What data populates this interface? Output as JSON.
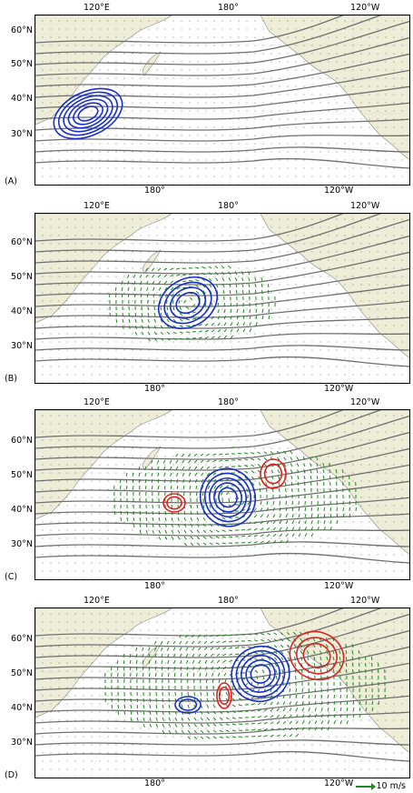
{
  "panels": [
    {
      "letter": "(A)",
      "top_ticks": [
        "120°E",
        "180°",
        "120°W"
      ],
      "bottom_ticks": [
        "180°",
        "120°W"
      ],
      "lat_ticks": [
        "60°N",
        "50°N",
        "40°N",
        "30°N"
      ]
    },
    {
      "letter": "(B)",
      "top_ticks": [
        "120°E",
        "180°",
        "120°W"
      ],
      "bottom_ticks": [
        "180°",
        "120°W"
      ],
      "lat_ticks": [
        "60°N",
        "50°N",
        "40°N",
        "30°N"
      ]
    },
    {
      "letter": "(C)",
      "top_ticks": [
        "120°E",
        "180°",
        "120°W"
      ],
      "bottom_ticks": [
        "180°",
        "120°W"
      ],
      "lat_ticks": [
        "60°N",
        "50°N",
        "40°N",
        "30°N"
      ]
    },
    {
      "letter": "(D)",
      "top_ticks": [
        "120°E",
        "180°",
        "120°W"
      ],
      "bottom_ticks": [
        "180°",
        "120°W"
      ],
      "lat_ticks": [
        "60°N",
        "50°N",
        "40°N",
        "30°N"
      ]
    }
  ],
  "scale_label": "10 m/s",
  "colors": {
    "land": "#eeeed8",
    "stream": "#707070",
    "low": "#1a2fc8",
    "high": "#dd2222",
    "wind": "#1e8a1e"
  }
}
